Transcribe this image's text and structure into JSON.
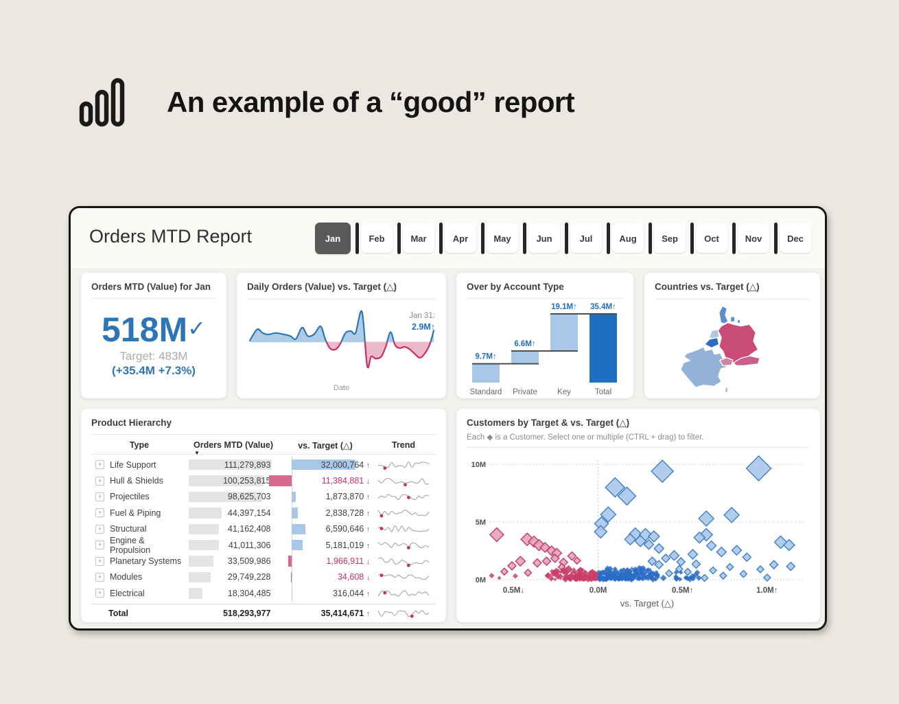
{
  "page": {
    "title": "An example of a “good” report",
    "logo": "bar-chart-logo"
  },
  "dashboard": {
    "title": "Orders MTD Report",
    "months": [
      "Jan",
      "Feb",
      "Mar",
      "Apr",
      "May",
      "Jun",
      "Jul",
      "Aug",
      "Sep",
      "Oct",
      "Nov",
      "Dec"
    ],
    "selected_month": "Jan",
    "kpi": {
      "title": "Orders MTD (Value) for Jan",
      "value": "518M",
      "check": "✓",
      "target": "Target: 483M",
      "delta": "(+35.4M +7.3%)"
    },
    "colors": {
      "accent_blue": "#2E75B6",
      "dark_blue": "#1F6FC0",
      "light_blue_bar": "#A9C7E8",
      "crimson": "#C9305E",
      "pink_bar": "#D9688E",
      "gray_bar": "#E4E4E4"
    }
  },
  "chart_data": [
    {
      "id": "daily_orders",
      "type": "area",
      "title": "Daily Orders (Value) vs. Target (△)",
      "xlabel": "Date",
      "annotation_label": "Jan 31:",
      "annotation_value": "2.9M↑",
      "note": "daily delta vs target, normalized -1..1; positive shown blue, negative crimson",
      "points": [
        [
          0,
          0.05
        ],
        [
          0.04,
          0.42
        ],
        [
          0.07,
          0.3
        ],
        [
          0.1,
          0.25
        ],
        [
          0.14,
          0.3
        ],
        [
          0.18,
          0.26
        ],
        [
          0.22,
          0.2
        ],
        [
          0.25,
          0.1
        ],
        [
          0.285,
          0.48
        ],
        [
          0.315,
          0.2
        ],
        [
          0.35,
          0.26
        ],
        [
          0.385,
          0.52
        ],
        [
          0.41,
          0.1
        ],
        [
          0.435,
          -0.2
        ],
        [
          0.465,
          -0.25
        ],
        [
          0.49,
          -0.08
        ],
        [
          0.52,
          0.3
        ],
        [
          0.55,
          0.36
        ],
        [
          0.575,
          0.3
        ],
        [
          0.61,
          1.0
        ],
        [
          0.638,
          -0.78
        ],
        [
          0.66,
          -0.48
        ],
        [
          0.685,
          -0.55
        ],
        [
          0.715,
          -0.48
        ],
        [
          0.74,
          -0.14
        ],
        [
          0.765,
          0.33
        ],
        [
          0.79,
          -0.1
        ],
        [
          0.815,
          -0.2
        ],
        [
          0.84,
          -0.16
        ],
        [
          0.865,
          -0.22
        ],
        [
          0.895,
          -0.38
        ],
        [
          0.925,
          -0.52
        ],
        [
          0.955,
          -0.35
        ],
        [
          0.98,
          -0.05
        ],
        [
          1,
          0.38
        ]
      ]
    },
    {
      "id": "account_type_waterfall",
      "type": "bar",
      "title": "Over by Account Type",
      "categories": [
        "Standard",
        "Private",
        "Key",
        "Total"
      ],
      "values_m": [
        9.7,
        6.6,
        19.1,
        35.4
      ],
      "labels": [
        "9.7M↑",
        "6.6M↑",
        "19.1M↑",
        "35.4M↑"
      ],
      "total_index": 3
    },
    {
      "id": "countries_map",
      "type": "heatmap",
      "title": "Countries vs. Target (△)",
      "countries": [
        {
          "name": "France",
          "color": "#92B2D8"
        },
        {
          "name": "Germany",
          "color": "#C84C74"
        },
        {
          "name": "Denmark",
          "color": "#5B8FD0"
        },
        {
          "name": "Netherlands",
          "color": "#AFC6E0"
        },
        {
          "name": "Belgium",
          "color": "#2B6CC4"
        },
        {
          "name": "Switzerland",
          "color": "#D183A4"
        },
        {
          "name": "Austria",
          "color": "#C9608A"
        },
        {
          "name": "Corsica",
          "color": "#92B2D8"
        }
      ]
    },
    {
      "id": "product_hierarchy",
      "type": "table",
      "title": "Product Hierarchy",
      "columns": [
        "Type",
        "Orders MTD (Value)",
        "vs. Target (△)",
        "Trend"
      ],
      "rows": [
        {
          "type": "Life Support",
          "orders": "111,279,893",
          "orders_value": 111279893,
          "delta": "32,000,764",
          "delta_value": 32000764,
          "direction": "up",
          "trend_dot": 0.15
        },
        {
          "type": "Hull & Shields",
          "orders": "100,253,815",
          "orders_value": 100253815,
          "delta": "11,384,881",
          "delta_value": -11384881,
          "direction": "down",
          "trend_dot": 0.55
        },
        {
          "type": "Projectiles",
          "orders": "98,625,703",
          "orders_value": 98625703,
          "delta": "1,873,870",
          "delta_value": 1873870,
          "direction": "up",
          "trend_dot": 0.62
        },
        {
          "type": "Fuel & Piping",
          "orders": "44,397,154",
          "orders_value": 44397154,
          "delta": "2,838,728",
          "delta_value": 2838728,
          "direction": "up",
          "trend_dot": 0.06
        },
        {
          "type": "Structural",
          "orders": "41,162,408",
          "orders_value": 41162408,
          "delta": "6,590,646",
          "delta_value": 6590646,
          "direction": "up",
          "trend_dot": 0.06
        },
        {
          "type": "Engine & Propulsion",
          "orders": "41,011,306",
          "orders_value": 41011306,
          "delta": "5,181,019",
          "delta_value": 5181019,
          "direction": "up",
          "trend_dot": 0.63
        },
        {
          "type": "Planetary Systems",
          "orders": "33,509,986",
          "orders_value": 33509986,
          "delta": "1,966,911",
          "delta_value": -1966911,
          "direction": "down",
          "trend_dot": 0.6
        },
        {
          "type": "Modules",
          "orders": "29,749,228",
          "orders_value": 29749228,
          "delta": "34,608",
          "delta_value": -34608,
          "direction": "down",
          "trend_dot": 0.06
        },
        {
          "type": "Electrical",
          "orders": "18,304,485",
          "orders_value": 18304485,
          "delta": "316,044",
          "delta_value": 316044,
          "direction": "up",
          "trend_dot": 0.1
        }
      ],
      "total": {
        "type": "Total",
        "orders": "518,293,977",
        "delta": "35,414,671",
        "direction": "up",
        "trend_dot": 0.68
      }
    },
    {
      "id": "customers_scatter",
      "type": "scatter",
      "title": "Customers by Target & vs. Target (△)",
      "subtitle": "Each ◆ is a Customer. Select one or multiple (CTRL + drag) to filter.",
      "xlabel": "vs. Target (△)",
      "x_ticks": [
        "0.5M↓",
        "0.0M",
        "0.5M↑",
        "1.0M↑"
      ],
      "x_tick_values": [
        -0.5,
        0,
        0.5,
        1.0
      ],
      "y_ticks": [
        "0M",
        "5M",
        "10M"
      ],
      "y_tick_values": [
        0,
        5,
        10
      ],
      "xlim": [
        -0.64,
        1.22
      ],
      "ylim": [
        0,
        10.8
      ],
      "points": [
        [
          0.38,
          9.4,
          16
        ],
        [
          0.95,
          9.65,
          18
        ],
        [
          0.1,
          8.0,
          14
        ],
        [
          0.17,
          7.25,
          13
        ],
        [
          0.06,
          5.65,
          11
        ],
        [
          0.02,
          4.85,
          10
        ],
        [
          0.015,
          4.15,
          9
        ],
        [
          0.64,
          5.3,
          11
        ],
        [
          0.79,
          5.6,
          11
        ],
        [
          0.64,
          3.9,
          9
        ],
        [
          1.08,
          3.25,
          9
        ],
        [
          1.13,
          3.0,
          8
        ],
        [
          0.22,
          3.95,
          9
        ],
        [
          0.28,
          3.9,
          9
        ],
        [
          0.33,
          3.75,
          8
        ],
        [
          0.19,
          3.5,
          8
        ],
        [
          0.25,
          3.35,
          8
        ],
        [
          0.3,
          3.05,
          7
        ],
        [
          0.36,
          2.7,
          7
        ],
        [
          0.6,
          3.65,
          8
        ],
        [
          0.67,
          2.95,
          7
        ],
        [
          0.73,
          2.4,
          7
        ],
        [
          0.56,
          2.2,
          7
        ],
        [
          0.45,
          2.1,
          7
        ],
        [
          0.4,
          1.85,
          6
        ],
        [
          0.49,
          1.55,
          6
        ],
        [
          0.58,
          1.35,
          6
        ],
        [
          0.82,
          2.55,
          7
        ],
        [
          0.88,
          1.95,
          6
        ],
        [
          1.04,
          1.3,
          6
        ],
        [
          1.14,
          1.15,
          6
        ],
        [
          0.96,
          0.9,
          5
        ],
        [
          0.86,
          0.5,
          5
        ],
        [
          0.74,
          0.35,
          5
        ],
        [
          0.63,
          0.15,
          5
        ],
        [
          0.53,
          0.68,
          5
        ],
        [
          0.48,
          0.92,
          5
        ],
        [
          1.0,
          0.18,
          5
        ],
        [
          0.42,
          0.55,
          5
        ],
        [
          0.36,
          1.3,
          6
        ],
        [
          0.32,
          1.6,
          6
        ],
        [
          0.68,
          0.8,
          5
        ],
        [
          0.78,
          1.1,
          5
        ],
        [
          -0.6,
          3.9,
          10
        ],
        [
          -0.42,
          3.5,
          9
        ],
        [
          -0.38,
          3.3,
          8
        ],
        [
          -0.35,
          3.0,
          8
        ],
        [
          -0.315,
          2.8,
          7
        ],
        [
          -0.275,
          2.5,
          7
        ],
        [
          -0.245,
          2.3,
          7
        ],
        [
          -0.46,
          1.6,
          7
        ],
        [
          -0.51,
          1.2,
          6
        ],
        [
          -0.555,
          0.7,
          5
        ],
        [
          -0.63,
          0.35,
          4
        ],
        [
          -0.36,
          1.45,
          6
        ],
        [
          -0.305,
          1.6,
          6
        ],
        [
          -0.255,
          1.85,
          6
        ],
        [
          -0.205,
          1.5,
          6
        ],
        [
          -0.155,
          2.05,
          6
        ],
        [
          -0.125,
          1.65,
          5
        ],
        [
          -0.585,
          0.15,
          3
        ],
        [
          -0.49,
          0.32,
          4
        ],
        [
          -0.415,
          0.6,
          5
        ],
        [
          -0.215,
          1.1,
          5
        ],
        [
          -0.175,
          0.9,
          5
        ]
      ],
      "clusters": [
        {
          "count": 150,
          "color": "blue",
          "x": [
            0.0,
            0.35
          ],
          "y": [
            0.02,
            1.0
          ],
          "s": [
            2,
            5
          ]
        },
        {
          "count": 60,
          "color": "blue",
          "x": [
            0.0,
            0.2
          ],
          "y": [
            0.02,
            0.5
          ],
          "s": [
            2,
            4
          ]
        },
        {
          "count": 90,
          "color": "pink",
          "x": [
            -0.3,
            -0.005
          ],
          "y": [
            0.02,
            0.9
          ],
          "s": [
            2,
            5
          ]
        },
        {
          "count": 40,
          "color": "pink",
          "x": [
            -0.18,
            -0.005
          ],
          "y": [
            0.02,
            0.45
          ],
          "s": [
            2,
            4
          ]
        },
        {
          "count": 25,
          "color": "blue",
          "x": [
            0.3,
            0.6
          ],
          "y": [
            0.02,
            0.7
          ],
          "s": [
            2.5,
            5
          ]
        }
      ]
    }
  ]
}
